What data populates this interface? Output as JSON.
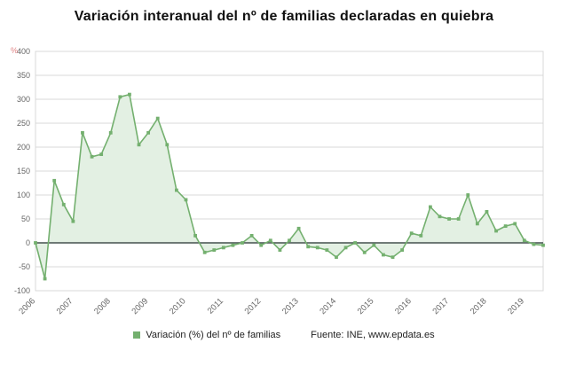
{
  "title": "Variación interanual del nº de familias declaradas en quiebra",
  "unit_label": "%",
  "legend": {
    "label": "Variación (%) del nº de familias"
  },
  "source": "Fuente: INE, www.epdata.es",
  "colors": {
    "line": "#74b06f",
    "fill": "#e3f0e3",
    "zero_line": "#44514f",
    "grid": "#d9d9d9",
    "axis_text": "#666666",
    "unit": "#e08283",
    "title": "#111111",
    "legend_text": "#222222"
  },
  "chart_data": {
    "type": "area",
    "title": "Variación interanual del nº de familias declaradas en quiebra",
    "ylabel": "%",
    "ylim": [
      -100,
      400
    ],
    "yticks": [
      -100,
      -50,
      0,
      50,
      100,
      150,
      200,
      250,
      300,
      350,
      400
    ],
    "x_tick_labels": [
      "2006",
      "2007",
      "2008",
      "2009",
      "2010",
      "2011",
      "2012",
      "2013",
      "2014",
      "2015",
      "2016",
      "2017",
      "2018",
      "2019"
    ],
    "points_per_year": 4,
    "series_name": "Variación (%) del nº de familias",
    "values": [
      0,
      -75,
      130,
      80,
      45,
      230,
      180,
      185,
      230,
      305,
      310,
      205,
      230,
      260,
      205,
      110,
      90,
      15,
      -20,
      -15,
      -10,
      -5,
      0,
      15,
      -5,
      5,
      -15,
      5,
      30,
      -8,
      -10,
      -15,
      -30,
      -10,
      0,
      -20,
      -5,
      -25,
      -30,
      -15,
      20,
      15,
      75,
      55,
      50,
      50,
      100,
      40,
      65,
      25,
      35,
      40,
      5,
      -3,
      -5
    ],
    "legend_position": "bottom",
    "grid": true
  }
}
